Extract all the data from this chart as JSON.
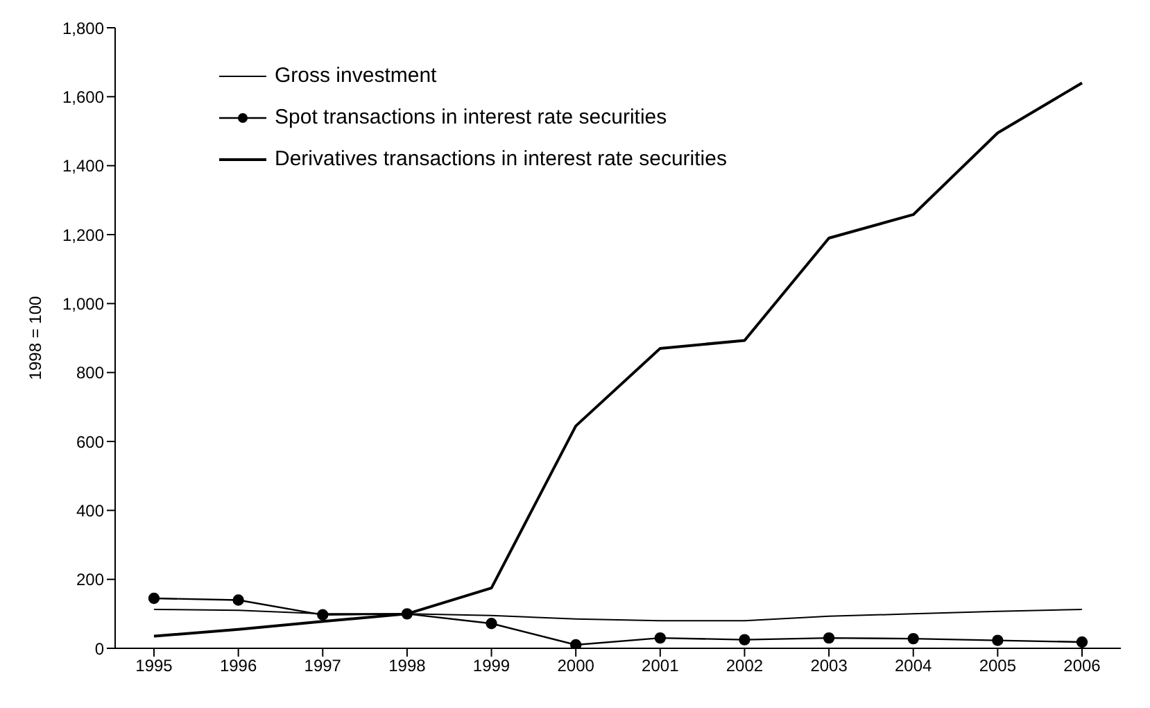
{
  "chart_data": {
    "type": "line",
    "ylabel": "1998 = 100",
    "categories": [
      "1995",
      "1996",
      "1997",
      "1998",
      "1999",
      "2000",
      "2001",
      "2002",
      "2003",
      "2004",
      "2005",
      "2006"
    ],
    "series": [
      {
        "name": "Gross investment",
        "color": "#000000",
        "marker": "none",
        "values": [
          113,
          110,
          100,
          100,
          95,
          85,
          80,
          80,
          93,
          100,
          107,
          113
        ]
      },
      {
        "name": "Spot transactions in interest rate securities",
        "color": "#000000",
        "marker": "circle",
        "values": [
          145,
          140,
          97,
          100,
          72,
          10,
          30,
          25,
          30,
          28,
          23,
          18
        ]
      },
      {
        "name": "Derivatives transactions in interest rate securities",
        "color": "#000000",
        "marker": "none",
        "values": [
          35,
          55,
          78,
          100,
          175,
          645,
          870,
          893,
          1190,
          1258,
          1495,
          1640
        ]
      }
    ],
    "ylim": [
      0,
      1800
    ],
    "yticks": [
      0,
      200,
      400,
      600,
      800,
      {
        "value": 1000,
        "label": "1,000"
      },
      {
        "value": 1200,
        "label": "1,200"
      },
      {
        "value": 1400,
        "label": "1,400"
      },
      {
        "value": 1600,
        "label": "1,600"
      },
      {
        "value": 1800,
        "label": "1,800"
      }
    ],
    "grid": false,
    "legend": "top left"
  }
}
